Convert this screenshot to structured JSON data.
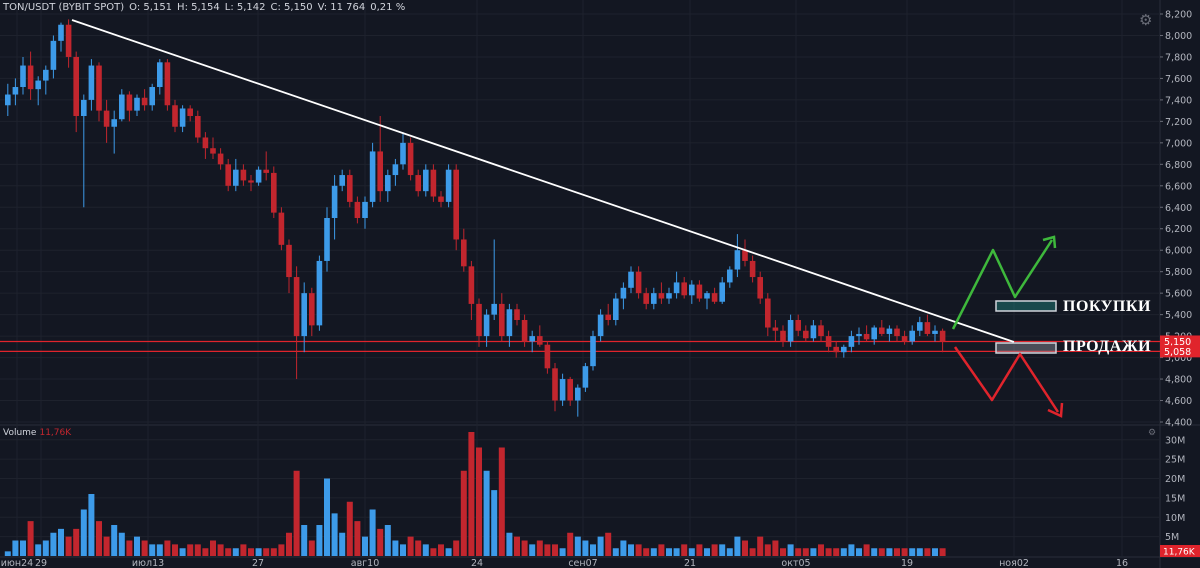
{
  "header": {
    "symbol": "TON/USDT (BYBIT SPOT)",
    "open": "O: 5,151",
    "high": "H: 5,154",
    "low": "L: 5,142",
    "close": "C: 5,150",
    "volume": "V: 11 764",
    "change": "0,21 %"
  },
  "volume_pane": {
    "label": "Volume",
    "value": "11,76K"
  },
  "annotations": {
    "buy_label": "ПОКУПКИ",
    "sell_label": "ПРОДАЖИ"
  },
  "colors": {
    "background": "#131722",
    "up": "#3d9be9",
    "down": "#c2262e",
    "trendline": "#ffffff",
    "support": "#e0242c",
    "buy_arrow": "#3eb83c",
    "sell_arrow": "#e0242c",
    "grid": "#1e222d"
  },
  "chart_data": [
    {
      "type": "candlestick",
      "x_labels": [
        "июн24",
        "29",
        "июл13",
        "27",
        "авг10",
        "24",
        "сен07",
        "21",
        "окт05",
        "19",
        "ноя02",
        "16"
      ],
      "y_ticks": [
        "8,200",
        "8,000",
        "7,800",
        "7,600",
        "7,400",
        "7,200",
        "7,000",
        "6,800",
        "6,600",
        "6,400",
        "6,200",
        "6,000",
        "5,800",
        "5,600",
        "5,400",
        "5,200",
        "5,000",
        "4,800",
        "4,600",
        "4,400"
      ],
      "ylim": [
        4.4,
        8.2
      ],
      "price_labels": [
        "5,150",
        "5,058"
      ],
      "support_levels": [
        5.15,
        5.058
      ],
      "trendline": {
        "from": [
          "июл01",
          8.12
        ],
        "to": [
          "окт28",
          5.13
        ]
      },
      "candles": [
        [
          7.35,
          7.55,
          7.25,
          7.45
        ],
        [
          7.45,
          7.6,
          7.35,
          7.52
        ],
        [
          7.52,
          7.8,
          7.45,
          7.72
        ],
        [
          7.72,
          7.85,
          7.4,
          7.5
        ],
        [
          7.5,
          7.62,
          7.35,
          7.58
        ],
        [
          7.58,
          7.72,
          7.45,
          7.68
        ],
        [
          7.68,
          8.0,
          7.6,
          7.95
        ],
        [
          7.95,
          8.12,
          7.85,
          8.1
        ],
        [
          8.1,
          8.15,
          7.7,
          7.8
        ],
        [
          7.8,
          7.85,
          7.1,
          7.25
        ],
        [
          7.25,
          7.45,
          6.4,
          7.4
        ],
        [
          7.4,
          7.78,
          7.3,
          7.72
        ],
        [
          7.72,
          7.75,
          7.2,
          7.3
        ],
        [
          7.3,
          7.4,
          7.0,
          7.15
        ],
        [
          7.15,
          7.3,
          6.9,
          7.22
        ],
        [
          7.22,
          7.5,
          7.2,
          7.45
        ],
        [
          7.45,
          7.48,
          7.2,
          7.3
        ],
        [
          7.3,
          7.45,
          7.25,
          7.42
        ],
        [
          7.42,
          7.5,
          7.3,
          7.35
        ],
        [
          7.35,
          7.55,
          7.3,
          7.52
        ],
        [
          7.52,
          7.78,
          7.45,
          7.75
        ],
        [
          7.75,
          7.78,
          7.3,
          7.35
        ],
        [
          7.35,
          7.4,
          7.1,
          7.15
        ],
        [
          7.15,
          7.35,
          7.1,
          7.32
        ],
        [
          7.32,
          7.35,
          7.2,
          7.25
        ],
        [
          7.25,
          7.3,
          7.0,
          7.05
        ],
        [
          7.05,
          7.1,
          6.85,
          6.95
        ],
        [
          6.95,
          7.05,
          6.85,
          6.9
        ],
        [
          6.9,
          6.95,
          6.75,
          6.8
        ],
        [
          6.8,
          6.85,
          6.55,
          6.6
        ],
        [
          6.6,
          6.85,
          6.55,
          6.75
        ],
        [
          6.75,
          6.8,
          6.6,
          6.65
        ],
        [
          6.65,
          6.7,
          6.55,
          6.63
        ],
        [
          6.63,
          6.78,
          6.6,
          6.75
        ],
        [
          6.75,
          6.92,
          6.65,
          6.72
        ],
        [
          6.72,
          6.78,
          6.3,
          6.35
        ],
        [
          6.35,
          6.4,
          6.0,
          6.05
        ],
        [
          6.05,
          6.1,
          5.6,
          5.75
        ],
        [
          5.75,
          5.85,
          4.8,
          5.2
        ],
        [
          5.2,
          5.7,
          5.05,
          5.6
        ],
        [
          5.6,
          5.65,
          5.2,
          5.3
        ],
        [
          5.3,
          5.95,
          5.25,
          5.9
        ],
        [
          5.9,
          6.4,
          5.8,
          6.3
        ],
        [
          6.3,
          6.7,
          6.1,
          6.6
        ],
        [
          6.6,
          6.75,
          6.55,
          6.7
        ],
        [
          6.7,
          6.75,
          6.4,
          6.45
        ],
        [
          6.45,
          6.5,
          6.25,
          6.3
        ],
        [
          6.3,
          6.5,
          6.2,
          6.45
        ],
        [
          6.45,
          7.0,
          6.4,
          6.92
        ],
        [
          6.92,
          7.25,
          6.45,
          6.55
        ],
        [
          6.55,
          6.75,
          6.45,
          6.7
        ],
        [
          6.7,
          6.85,
          6.6,
          6.8
        ],
        [
          6.8,
          7.1,
          6.75,
          7.0
        ],
        [
          7.0,
          7.05,
          6.65,
          6.7
        ],
        [
          6.7,
          6.75,
          6.5,
          6.55
        ],
        [
          6.55,
          6.8,
          6.5,
          6.75
        ],
        [
          6.75,
          6.8,
          6.45,
          6.5
        ],
        [
          6.5,
          6.55,
          6.4,
          6.45
        ],
        [
          6.45,
          6.8,
          6.4,
          6.75
        ],
        [
          6.75,
          6.8,
          6.0,
          6.1
        ],
        [
          6.1,
          6.2,
          5.8,
          5.85
        ],
        [
          5.85,
          5.9,
          5.35,
          5.5
        ],
        [
          5.5,
          5.55,
          5.1,
          5.2
        ],
        [
          5.2,
          5.45,
          5.1,
          5.4
        ],
        [
          5.4,
          6.1,
          5.35,
          5.5
        ],
        [
          5.5,
          5.6,
          5.15,
          5.2
        ],
        [
          5.2,
          5.5,
          5.1,
          5.45
        ],
        [
          5.45,
          5.5,
          5.3,
          5.35
        ],
        [
          5.35,
          5.4,
          5.1,
          5.15
        ],
        [
          5.15,
          5.25,
          5.05,
          5.2
        ],
        [
          5.2,
          5.3,
          5.1,
          5.12
        ],
        [
          5.12,
          5.15,
          4.85,
          4.9
        ],
        [
          4.9,
          4.95,
          4.5,
          4.6
        ],
        [
          4.6,
          4.85,
          4.55,
          4.8
        ],
        [
          4.8,
          4.82,
          4.55,
          4.6
        ],
        [
          4.6,
          4.75,
          4.45,
          4.72
        ],
        [
          4.72,
          4.95,
          4.68,
          4.92
        ],
        [
          4.92,
          5.25,
          4.88,
          5.2
        ],
        [
          5.2,
          5.45,
          5.15,
          5.4
        ],
        [
          5.4,
          5.5,
          5.3,
          5.35
        ],
        [
          5.35,
          5.6,
          5.3,
          5.55
        ],
        [
          5.55,
          5.7,
          5.45,
          5.65
        ],
        [
          5.65,
          5.85,
          5.6,
          5.8
        ],
        [
          5.8,
          5.85,
          5.55,
          5.6
        ],
        [
          5.6,
          5.65,
          5.45,
          5.5
        ],
        [
          5.5,
          5.65,
          5.45,
          5.6
        ],
        [
          5.6,
          5.7,
          5.5,
          5.55
        ],
        [
          5.55,
          5.65,
          5.5,
          5.6
        ],
        [
          5.6,
          5.8,
          5.55,
          5.7
        ],
        [
          5.7,
          5.75,
          5.55,
          5.58
        ],
        [
          5.58,
          5.72,
          5.5,
          5.68
        ],
        [
          5.68,
          5.72,
          5.52,
          5.55
        ],
        [
          5.55,
          5.62,
          5.45,
          5.6
        ],
        [
          5.6,
          5.65,
          5.5,
          5.52
        ],
        [
          5.52,
          5.75,
          5.5,
          5.7
        ],
        [
          5.7,
          5.85,
          5.65,
          5.82
        ],
        [
          5.82,
          6.15,
          5.75,
          6.0
        ],
        [
          6.0,
          6.1,
          5.85,
          5.9
        ],
        [
          5.9,
          5.95,
          5.7,
          5.75
        ],
        [
          5.75,
          5.8,
          5.5,
          5.55
        ],
        [
          5.55,
          5.6,
          5.2,
          5.28
        ],
        [
          5.28,
          5.35,
          5.15,
          5.25
        ],
        [
          5.25,
          5.3,
          5.1,
          5.15
        ],
        [
          5.15,
          5.4,
          5.1,
          5.35
        ],
        [
          5.35,
          5.4,
          5.2,
          5.25
        ],
        [
          5.25,
          5.3,
          5.15,
          5.18
        ],
        [
          5.18,
          5.35,
          5.15,
          5.3
        ],
        [
          5.3,
          5.35,
          5.15,
          5.2
        ],
        [
          5.2,
          5.25,
          5.05,
          5.1
        ],
        [
          5.1,
          5.15,
          5.0,
          5.05
        ],
        [
          5.05,
          5.12,
          5.0,
          5.1
        ],
        [
          5.1,
          5.25,
          5.05,
          5.2
        ],
        [
          5.2,
          5.28,
          5.12,
          5.22
        ],
        [
          5.22,
          5.3,
          5.15,
          5.17
        ],
        [
          5.17,
          5.3,
          5.12,
          5.28
        ],
        [
          5.28,
          5.35,
          5.2,
          5.22
        ],
        [
          5.22,
          5.3,
          5.15,
          5.27
        ],
        [
          5.27,
          5.3,
          5.15,
          5.2
        ],
        [
          5.2,
          5.25,
          5.12,
          5.15
        ],
        [
          5.15,
          5.3,
          5.12,
          5.25
        ],
        [
          5.25,
          5.38,
          5.2,
          5.33
        ],
        [
          5.33,
          5.4,
          5.2,
          5.22
        ],
        [
          5.22,
          5.3,
          5.15,
          5.25
        ],
        [
          5.25,
          5.27,
          5.05,
          5.15
        ]
      ]
    },
    {
      "type": "bar",
      "series_name": "Volume",
      "y_ticks": [
        "30M",
        "25M",
        "20M",
        "15M",
        "10M",
        "5M"
      ],
      "ylim": [
        0,
        32
      ],
      "unit": "M",
      "values": [
        1.2,
        4,
        4,
        9,
        3,
        4,
        6,
        7,
        5,
        7,
        12,
        16,
        9,
        5,
        8,
        6,
        4,
        5,
        4,
        3,
        3,
        4,
        3,
        2,
        3,
        3,
        2,
        4,
        3,
        2,
        2,
        3,
        2,
        2,
        2,
        2,
        3,
        6,
        22,
        8,
        4,
        8,
        20,
        11,
        6,
        14,
        9,
        5,
        12,
        7,
        8,
        4,
        3,
        5,
        4,
        3,
        2,
        3,
        2,
        4,
        22,
        32,
        28,
        22,
        17,
        28,
        6,
        5,
        4,
        3,
        4,
        3,
        3,
        2,
        6,
        5,
        4,
        3,
        5,
        6,
        2,
        4,
        3,
        3,
        2,
        2,
        3,
        2,
        2,
        3,
        2,
        3,
        2,
        3,
        3,
        2,
        5,
        4,
        2,
        5,
        3,
        4,
        2,
        3,
        2,
        2,
        2,
        3,
        2,
        2,
        2,
        3,
        2,
        3,
        2,
        2,
        2,
        2,
        2,
        2,
        2,
        2,
        2,
        2
      ]
    }
  ]
}
